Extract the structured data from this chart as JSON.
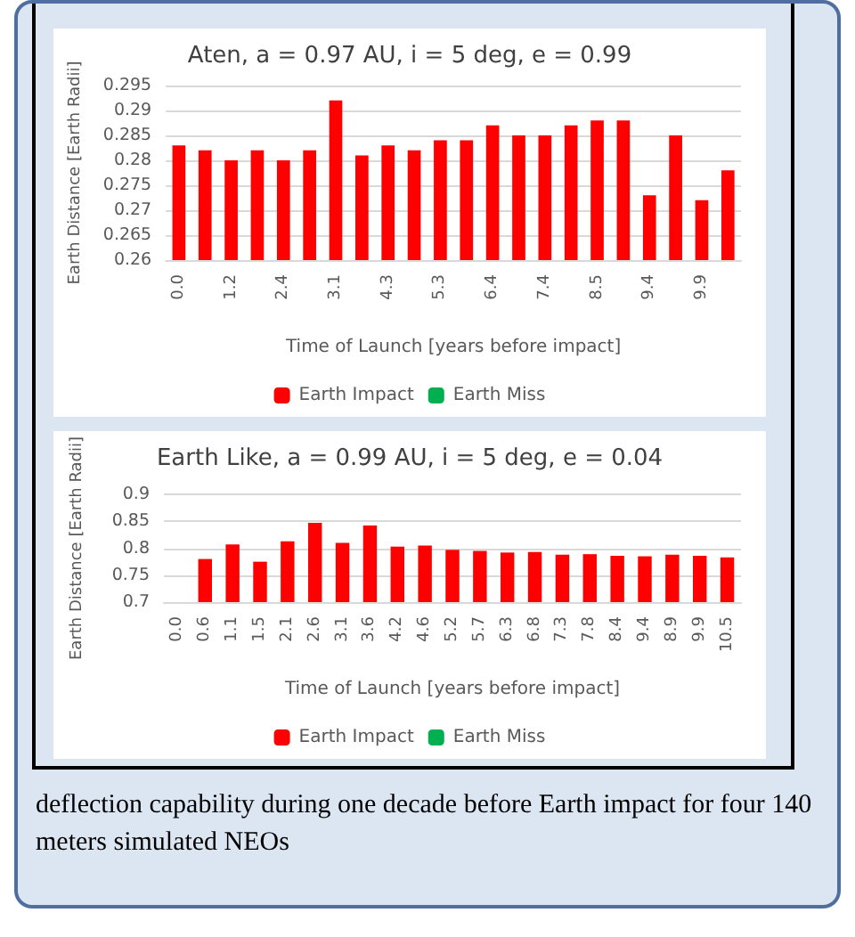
{
  "chart_data": [
    {
      "type": "bar",
      "title": "Aten, a = 0.97 AU, i = 5 deg, e = 0.99",
      "xlabel": "Time of Launch [years before impact]",
      "ylabel": "Earth Distance [Earth Radii]",
      "categories": [
        "0.0",
        null,
        "1.2",
        null,
        "2.4",
        null,
        "3.1",
        null,
        "4.3",
        null,
        "5.3",
        null,
        "6.4",
        null,
        "7.4",
        null,
        "8.5",
        null,
        "9.4",
        null,
        "9.9",
        null
      ],
      "series": [
        {
          "name": "Earth Impact",
          "color": "#ff0000",
          "values": [
            0.283,
            0.282,
            0.28,
            0.282,
            0.28,
            0.282,
            0.292,
            0.281,
            0.283,
            0.282,
            0.284,
            0.284,
            0.287,
            0.285,
            0.285,
            0.287,
            0.288,
            0.288,
            0.273,
            0.285,
            0.272,
            0.278
          ]
        },
        {
          "name": "Earth Miss",
          "color": "#00b050",
          "values": [
            null,
            null,
            null,
            null,
            null,
            null,
            null,
            null,
            null,
            null,
            null,
            null,
            null,
            null,
            null,
            null,
            null,
            null,
            null,
            null,
            null,
            null
          ]
        }
      ],
      "ylim": [
        0.26,
        0.295
      ],
      "yticks": [
        0.26,
        0.265,
        0.27,
        0.275,
        0.28,
        0.285,
        0.29,
        0.295
      ],
      "grid": "y",
      "legend": "bottom"
    },
    {
      "type": "bar",
      "title": "Earth Like, a = 0.99 AU, i = 5 deg, e = 0.04",
      "xlabel": "Time of Launch [years before impact]",
      "ylabel": "Earth Distance [Earth Radii]",
      "categories": [
        "0.0",
        "0.6",
        "1.1",
        "1.5",
        "2.1",
        "2.6",
        "3.1",
        "3.6",
        "4.2",
        "4.6",
        "5.2",
        "5.7",
        "6.3",
        "6.8",
        "7.3",
        "7.8",
        "8.4",
        "9.4",
        "8.9",
        "9.9",
        "10.5"
      ],
      "series": [
        {
          "name": "Earth Impact",
          "color": "#ff0000",
          "values": [
            null,
            0.78,
            0.807,
            0.775,
            0.813,
            0.847,
            0.81,
            0.842,
            0.803,
            0.805,
            0.797,
            0.795,
            0.792,
            0.793,
            0.788,
            0.789,
            0.786,
            0.785,
            0.788,
            0.786,
            0.783
          ]
        },
        {
          "name": "Earth Miss",
          "color": "#00b050",
          "values": [
            null,
            null,
            null,
            null,
            null,
            null,
            null,
            null,
            null,
            null,
            null,
            null,
            null,
            null,
            null,
            null,
            null,
            null,
            null,
            null,
            null
          ]
        }
      ],
      "ylim": [
        0.7,
        0.9
      ],
      "yticks": [
        0.7,
        0.75,
        0.8,
        0.85,
        0.9
      ],
      "grid": "y",
      "legend": "bottom"
    },
    {
      "type": "other",
      "annotations": [
        "deflection capability during one decade before Earth impact for four 140 meters simulated NEOs"
      ]
    }
  ]
}
